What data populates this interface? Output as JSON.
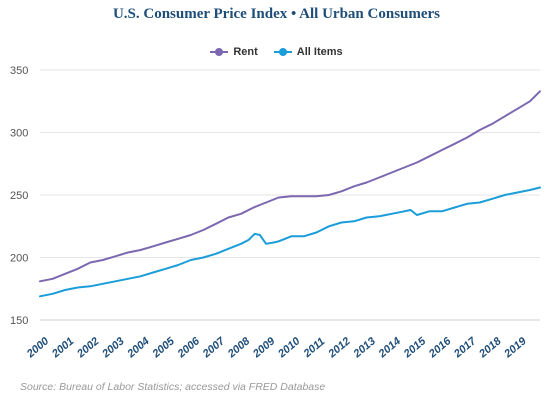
{
  "chart_data": {
    "type": "line",
    "title": "U.S. Consumer Price Index • All Urban Consumers",
    "xlabel": "",
    "ylabel": "",
    "x_tick_labels": [
      "2000",
      "2001",
      "2002",
      "2003",
      "2004",
      "2005",
      "2006",
      "2007",
      "2008",
      "2009",
      "2010",
      "2011",
      "2012",
      "2013",
      "2014",
      "2015",
      "2016",
      "2017",
      "2018",
      "2019"
    ],
    "y_tick_labels": [
      "150",
      "200",
      "250",
      "300",
      "350"
    ],
    "xlim": [
      2000,
      2019.9
    ],
    "ylim": [
      150,
      350
    ],
    "grid": "horizontal",
    "legend_position": "top-center",
    "source": "Source: Bureau of Labor Statistics; accessed via FRED Database",
    "series": [
      {
        "name": "Rent",
        "color": "#7b68b0",
        "x": [
          2000.0,
          2000.5,
          2001.0,
          2001.5,
          2002.0,
          2002.5,
          2003.0,
          2003.5,
          2004.0,
          2004.5,
          2005.0,
          2005.5,
          2006.0,
          2006.5,
          2007.0,
          2007.5,
          2008.0,
          2008.5,
          2009.0,
          2009.5,
          2010.0,
          2010.5,
          2011.0,
          2011.5,
          2012.0,
          2012.5,
          2013.0,
          2013.5,
          2014.0,
          2014.5,
          2015.0,
          2015.5,
          2016.0,
          2016.5,
          2017.0,
          2017.5,
          2018.0,
          2018.5,
          2019.0,
          2019.5,
          2019.9
        ],
        "values": [
          181,
          183,
          187,
          191,
          196,
          198,
          201,
          204,
          206,
          209,
          212,
          215,
          218,
          222,
          227,
          232,
          235,
          240,
          244,
          248,
          249,
          249,
          249,
          250,
          253,
          257,
          260,
          264,
          268,
          272,
          276,
          281,
          286,
          291,
          296,
          302,
          307,
          313,
          319,
          325,
          333
        ]
      },
      {
        "name": "All Items",
        "color": "#1a9dd9",
        "x": [
          2000.0,
          2000.5,
          2001.0,
          2001.5,
          2002.0,
          2002.5,
          2003.0,
          2003.5,
          2004.0,
          2004.5,
          2005.0,
          2005.5,
          2006.0,
          2006.5,
          2007.0,
          2007.5,
          2008.0,
          2008.3,
          2008.55,
          2008.75,
          2009.0,
          2009.3,
          2009.5,
          2010.0,
          2010.5,
          2011.0,
          2011.5,
          2012.0,
          2012.5,
          2013.0,
          2013.5,
          2014.0,
          2014.5,
          2014.75,
          2015.0,
          2015.5,
          2016.0,
          2016.5,
          2017.0,
          2017.5,
          2018.0,
          2018.5,
          2019.0,
          2019.5,
          2019.9
        ],
        "values": [
          169,
          171,
          174,
          176,
          177,
          179,
          181,
          183,
          185,
          188,
          191,
          194,
          198,
          200,
          203,
          207,
          211,
          214,
          219,
          218,
          211,
          212,
          213,
          217,
          217,
          220,
          225,
          228,
          229,
          232,
          233,
          235,
          237,
          238,
          234,
          237,
          237,
          240,
          243,
          244,
          247,
          250,
          252,
          254,
          256
        ]
      }
    ]
  }
}
